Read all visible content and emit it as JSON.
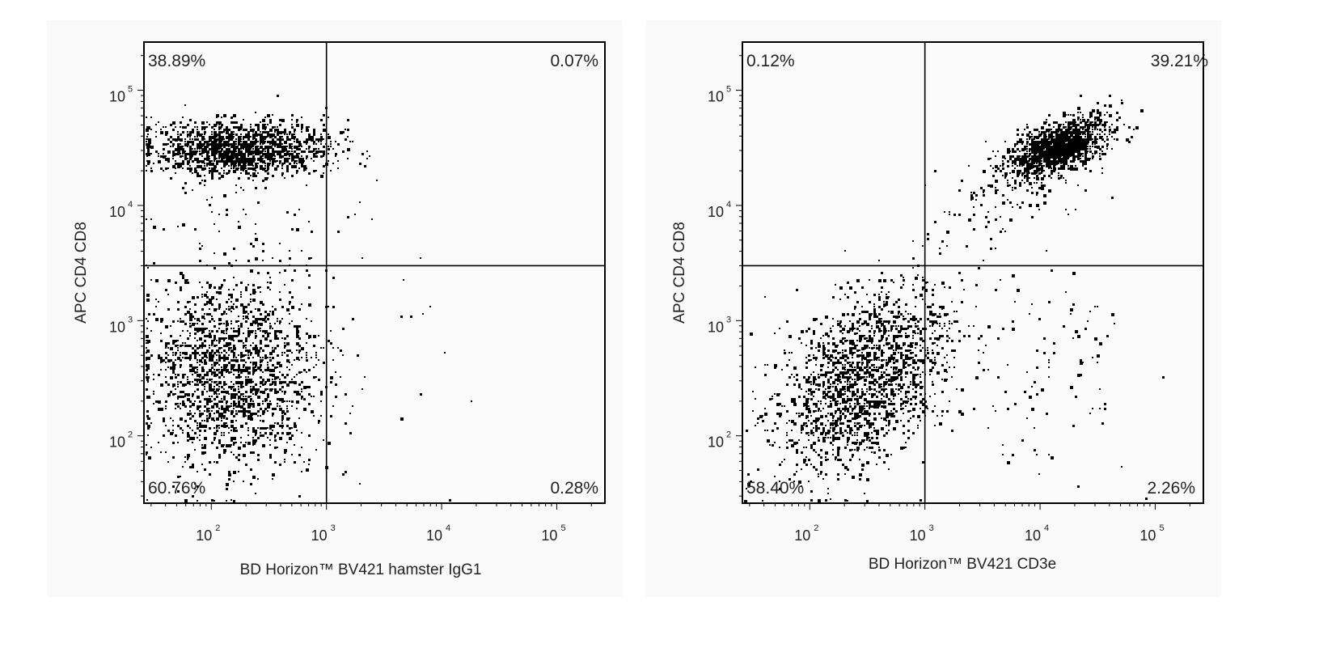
{
  "chart_data": [
    {
      "type": "scatter",
      "subtype": "flow-cytometry-dot-plot",
      "xlabel": "BD Horizon™ BV421 hamster IgG1",
      "ylabel": "APC CD4 CD8",
      "xscale": "log",
      "yscale": "log",
      "xlim": [
        26,
        262000
      ],
      "ylim": [
        26,
        262000
      ],
      "tick_base": "10",
      "x_ticks": [
        {
          "value": 100,
          "exp": "2"
        },
        {
          "value": 1000,
          "exp": "3"
        },
        {
          "value": 10000,
          "exp": "4"
        },
        {
          "value": 100000,
          "exp": "5"
        }
      ],
      "y_ticks": [
        {
          "value": 100,
          "exp": "2"
        },
        {
          "value": 1000,
          "exp": "3"
        },
        {
          "value": 10000,
          "exp": "4"
        },
        {
          "value": 100000,
          "exp": "5"
        }
      ],
      "quadrant_gate": {
        "x": 1000,
        "y": 3000
      },
      "quadrants": {
        "upper_left": "38.89%",
        "upper_right": "0.07%",
        "lower_left": "60.76%",
        "lower_right": "0.28%"
      },
      "populations": [
        {
          "center": [
            170,
            32000
          ],
          "spread_decades": [
            0.38,
            0.12
          ],
          "n": 1500,
          "corr": 0.0
        },
        {
          "center": [
            140,
            360
          ],
          "spread_decades": [
            0.36,
            0.42
          ],
          "n": 2300,
          "corr": 0.0
        },
        {
          "center": [
            3000,
            400
          ],
          "spread_decades": [
            0.35,
            0.5
          ],
          "n": 22,
          "corr": 0.0
        },
        {
          "center": [
            250,
            8000
          ],
          "spread_decades": [
            0.4,
            0.25
          ],
          "n": 60,
          "corr": 0.0
        }
      ],
      "seed": 11
    },
    {
      "type": "scatter",
      "subtype": "flow-cytometry-dot-plot",
      "xlabel": "BD Horizon™ BV421 CD3e",
      "ylabel": "APC CD4 CD8",
      "xscale": "log",
      "yscale": "log",
      "xlim": [
        26,
        262000
      ],
      "ylim": [
        26,
        262000
      ],
      "tick_base": "10",
      "x_ticks": [
        {
          "value": 100,
          "exp": "2"
        },
        {
          "value": 1000,
          "exp": "3"
        },
        {
          "value": 10000,
          "exp": "4"
        },
        {
          "value": 100000,
          "exp": "5"
        }
      ],
      "y_ticks": [
        {
          "value": 100,
          "exp": "2"
        },
        {
          "value": 1000,
          "exp": "3"
        },
        {
          "value": 10000,
          "exp": "4"
        },
        {
          "value": 100000,
          "exp": "5"
        }
      ],
      "quadrant_gate": {
        "x": 1000,
        "y": 3000
      },
      "quadrants": {
        "upper_left": "0.12%",
        "upper_right": "39.21%",
        "lower_left": "58.40%",
        "lower_right": "2.26%"
      },
      "populations": [
        {
          "center": [
            14000,
            32000
          ],
          "spread_decades": [
            0.22,
            0.13
          ],
          "n": 1500,
          "corr": 0.6
        },
        {
          "center": [
            6000,
            14000
          ],
          "spread_decades": [
            0.35,
            0.25
          ],
          "n": 120,
          "corr": 0.5
        },
        {
          "center": [
            280,
            320
          ],
          "spread_decades": [
            0.36,
            0.4
          ],
          "n": 2300,
          "corr": 0.45
        },
        {
          "center": [
            9000,
            400
          ],
          "spread_decades": [
            0.45,
            0.45
          ],
          "n": 110,
          "corr": 0.0
        }
      ],
      "seed": 23
    }
  ]
}
